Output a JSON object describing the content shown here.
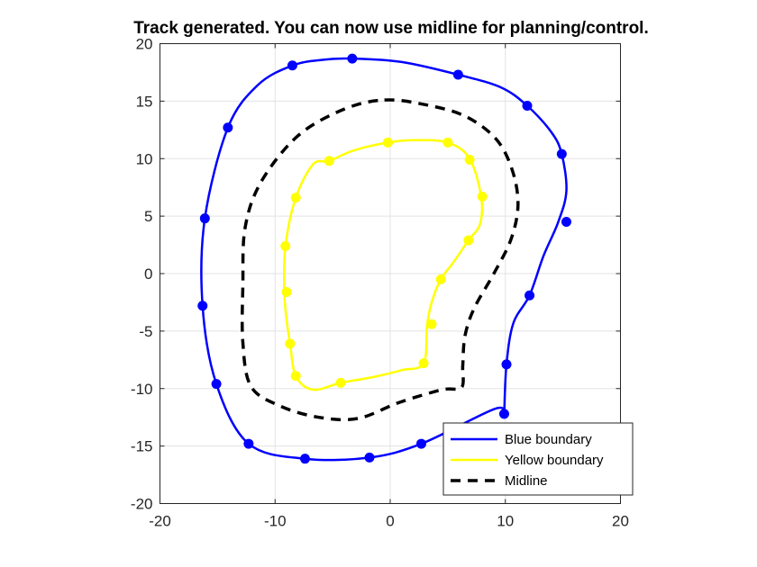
{
  "chart_data": {
    "type": "line",
    "title": "Track generated. You can now use midline for planning/control.",
    "xlabel": "",
    "ylabel": "",
    "xlim": [
      -20,
      20
    ],
    "ylim": [
      -20,
      20
    ],
    "xticks": [
      -20,
      -10,
      0,
      10,
      20
    ],
    "yticks": [
      -20,
      -15,
      -10,
      -5,
      0,
      5,
      10,
      15,
      20
    ],
    "grid": true,
    "legend_position": "bottom-right",
    "series": [
      {
        "name": "Blue boundary",
        "color": "#0000ff",
        "style": "solid",
        "closed": true,
        "x": [
          -3.3,
          1.0,
          5.9,
          9.6,
          11.9,
          14.0,
          14.9,
          15.3,
          14.6,
          13.3,
          12.1,
          10.7,
          10.1,
          9.9,
          9.9,
          9.0,
          2.7,
          -1.8,
          -7.4,
          -12.3,
          -15.1,
          -16.3,
          -16.1,
          -14.1,
          -11.5,
          -8.5,
          -5.8
        ],
        "y": [
          18.7,
          18.4,
          17.3,
          16.2,
          14.6,
          12.3,
          10.4,
          7.2,
          4.5,
          1.5,
          -1.9,
          -4.3,
          -7.9,
          -12.2,
          -12.2,
          -11.8,
          -14.8,
          -16.0,
          -16.1,
          -14.8,
          -9.6,
          -2.8,
          4.8,
          12.7,
          16.4,
          18.1,
          18.6
        ],
        "markers": [
          [
            -3.3,
            18.7
          ],
          [
            5.9,
            17.3
          ],
          [
            11.9,
            14.6
          ],
          [
            14.9,
            10.4
          ],
          [
            15.3,
            4.5
          ],
          [
            12.1,
            -1.9
          ],
          [
            10.1,
            -7.9
          ],
          [
            9.9,
            -12.2
          ],
          [
            2.7,
            -14.8
          ],
          [
            -1.8,
            -16.0
          ],
          [
            -7.4,
            -16.1
          ],
          [
            -12.3,
            -14.8
          ],
          [
            -15.1,
            -9.6
          ],
          [
            -16.3,
            -2.8
          ],
          [
            -16.1,
            4.8
          ],
          [
            -14.1,
            12.7
          ],
          [
            -8.5,
            18.1
          ]
        ]
      },
      {
        "name": "Yellow boundary",
        "color": "#ffff00",
        "style": "solid",
        "closed": true,
        "x": [
          -0.2,
          2.2,
          5.0,
          6.9,
          7.9,
          7.8,
          6.8,
          5.5,
          4.4,
          3.6,
          3.2,
          2.9,
          1.0,
          -1.5,
          -4.3,
          -6.7,
          -8.2,
          -8.7,
          -9.0,
          -9.2,
          -9.1,
          -8.2,
          -6.7,
          -5.3,
          -3.2
        ],
        "y": [
          11.4,
          11.6,
          11.4,
          10.0,
          6.7,
          4.3,
          2.9,
          1.0,
          -0.5,
          -2.5,
          -4.5,
          -7.8,
          -8.4,
          -9.0,
          -9.5,
          -10.1,
          -8.9,
          -6.1,
          -4.0,
          -1.6,
          2.4,
          6.6,
          9.5,
          9.8,
          10.7
        ],
        "markers": [
          [
            -0.2,
            11.4
          ],
          [
            5.0,
            11.4
          ],
          [
            6.9,
            9.9
          ],
          [
            8.0,
            6.7
          ],
          [
            6.8,
            2.9
          ],
          [
            4.4,
            -0.5
          ],
          [
            3.6,
            -4.4
          ],
          [
            2.9,
            -7.8
          ],
          [
            -4.3,
            -9.5
          ],
          [
            -8.2,
            -8.9
          ],
          [
            -8.7,
            -6.1
          ],
          [
            -9.0,
            -1.6
          ],
          [
            -9.1,
            2.4
          ],
          [
            -8.2,
            6.6
          ],
          [
            -5.3,
            9.8
          ],
          [
            -0.2,
            11.4
          ]
        ]
      },
      {
        "name": "Midline",
        "color": "#000000",
        "style": "dashed",
        "closed": true,
        "x": [
          -0.5,
          3.0,
          6.5,
          9.2,
          10.6,
          11.1,
          10.5,
          9.0,
          7.3,
          6.5,
          6.3,
          6.2,
          4.5,
          0.8,
          -2.8,
          -6.2,
          -9.6,
          -12.1,
          -12.8,
          -12.8,
          -12.6,
          -11.2,
          -8.0,
          -4.0
        ],
        "y": [
          15.1,
          14.7,
          13.7,
          11.7,
          9.0,
          6.0,
          3.0,
          0.0,
          -3.0,
          -5.4,
          -8.0,
          -9.9,
          -10.1,
          -11.2,
          -12.6,
          -12.5,
          -11.5,
          -9.8,
          -6.0,
          -1.0,
          4.0,
          8.0,
          12.0,
          14.3
        ]
      }
    ]
  }
}
